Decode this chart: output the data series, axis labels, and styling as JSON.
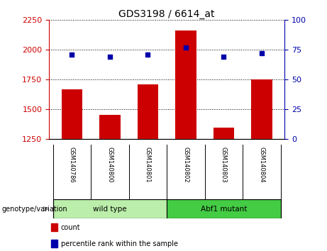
{
  "title": "GDS3198 / 6614_at",
  "samples": [
    "GSM140786",
    "GSM140800",
    "GSM140801",
    "GSM140802",
    "GSM140803",
    "GSM140804"
  ],
  "counts": [
    1670,
    1455,
    1710,
    2160,
    1345,
    1755
  ],
  "percentile_ranks": [
    71,
    69,
    71,
    77,
    69,
    72
  ],
  "ylim_left": [
    1250,
    2250
  ],
  "ylim_right": [
    0,
    100
  ],
  "yticks_left": [
    1250,
    1500,
    1750,
    2000,
    2250
  ],
  "yticks_right": [
    0,
    25,
    50,
    75,
    100
  ],
  "bar_color": "#cc0000",
  "dot_color": "#0000aa",
  "groups": [
    {
      "label": "wild type",
      "start": 0,
      "end": 3,
      "color": "#bbeeaa"
    },
    {
      "label": "Abf1 mutant",
      "start": 3,
      "end": 6,
      "color": "#44cc44"
    }
  ],
  "group_label": "genotype/variation",
  "legend_items": [
    {
      "label": "count",
      "color": "#cc0000"
    },
    {
      "label": "percentile rank within the sample",
      "color": "#0000aa"
    }
  ],
  "bar_width": 0.55,
  "left_tick_color": "#cc0000",
  "right_tick_color": "#0000aa",
  "title_fontsize": 10,
  "label_gray": "#cccccc",
  "label_gray_dark": "#aaaaaa"
}
